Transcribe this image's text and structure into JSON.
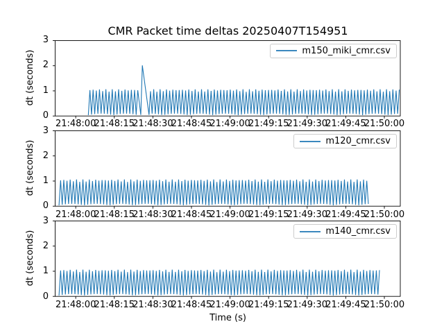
{
  "figure": {
    "background_color": "#ffffff",
    "text_color": "#000000",
    "spine_color": "#000000",
    "legend_border_color": "#cccccc"
  },
  "chart_data": {
    "type": "line",
    "title": "CMR Packet time deltas 20250407T154951",
    "xlabel": "Time (s)",
    "time_origin": "21:48:00",
    "x_tick_labels": [
      "21:48:00",
      "21:48:15",
      "21:48:30",
      "21:48:45",
      "21:49:00",
      "21:49:15",
      "21:49:30",
      "21:49:45",
      "21:50:00"
    ],
    "x_tick_seconds": [
      0,
      15,
      30,
      45,
      60,
      75,
      90,
      105,
      120
    ],
    "xlim_seconds": [
      -8.0,
      126.2
    ],
    "grid": false,
    "legend_position": "upper right",
    "line_color": "#1f77b4",
    "subplots": [
      {
        "legend": "m150_miki_cmr.csv",
        "ylabel": "dt (seconds)",
        "ylim": [
          0,
          3
        ],
        "yticks": [
          0,
          1,
          2,
          3
        ],
        "series_summary": {
          "description": "Packet time-delta sawtooth oscillating between ~0.05 s and ~1.0 s",
          "data_start": "21:48:05",
          "data_end": "21:50:06",
          "start_s": 4.9,
          "end_s": 126.2,
          "half_period_s": 0.62,
          "typical_low_s": 0.05,
          "typical_high_s": 1.0,
          "anomaly": {
            "time": "21:48:26",
            "time_s": 25.9,
            "peak_dt_s": 2.0
          }
        }
      },
      {
        "legend": "m120_cmr.csv",
        "ylabel": "dt (seconds)",
        "ylim": [
          0,
          3
        ],
        "yticks": [
          0,
          1,
          2,
          3
        ],
        "series_summary": {
          "description": "Packet time-delta sawtooth oscillating between ~0.05 s and ~1.0 s",
          "data_start": "21:47:54",
          "data_end": "21:49:54",
          "start_s": -6.5,
          "end_s": 114.3,
          "half_period_s": 0.62,
          "typical_low_s": 0.05,
          "typical_high_s": 1.0,
          "anomaly": null
        }
      },
      {
        "legend": "m140_cmr.csv",
        "ylabel": "dt (seconds)",
        "ylim": [
          0,
          3
        ],
        "yticks": [
          0,
          1,
          2,
          3
        ],
        "series_summary": {
          "description": "Packet time-delta sawtooth oscillating between ~0.05 s and ~1.0 s",
          "data_start": "21:47:54",
          "data_end": "21:49:58",
          "start_s": -6.5,
          "end_s": 118.2,
          "half_period_s": 0.62,
          "typical_low_s": 0.05,
          "typical_high_s": 1.0,
          "anomaly": null
        }
      }
    ]
  }
}
